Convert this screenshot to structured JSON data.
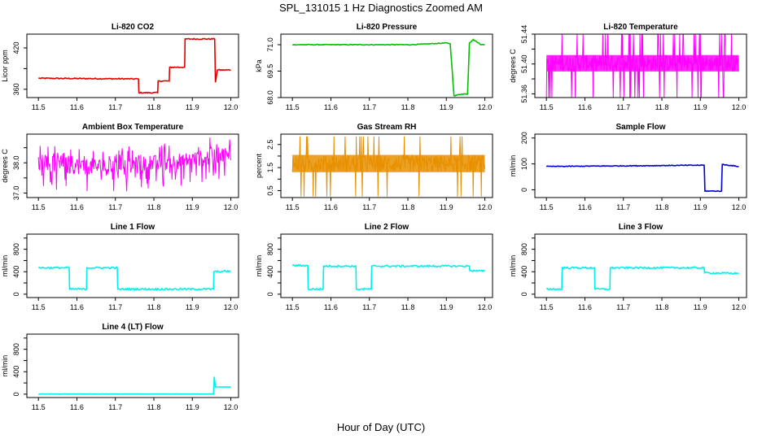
{
  "figure": {
    "title": "SPL_131015  1 Hz Diagnostics Zoomed AM",
    "xlabel": "Hour of Day (UTC)"
  },
  "chart_data": [
    {
      "type": "line",
      "title": "Li-820 CO2",
      "ylabel": "Licor ppm",
      "color": "#e00000",
      "xlim": [
        11.47,
        12.02
      ],
      "ylim": [
        348,
        440
      ],
      "xticks": [
        11.5,
        11.6,
        11.7,
        11.8,
        11.9,
        12.0
      ],
      "xticklabels": [
        "11.5",
        "11.6",
        "11.7",
        "11.8",
        "11.9",
        "12.0"
      ],
      "yticks": [
        360,
        390,
        420
      ],
      "yticklabels": [
        "360",
        "",
        "420"
      ],
      "x": [
        11.5,
        11.76,
        11.761,
        11.81,
        11.811,
        11.84,
        11.841,
        11.88,
        11.881,
        11.958,
        11.96,
        11.965,
        12.0
      ],
      "y": [
        376,
        375,
        355,
        355,
        372,
        372,
        392,
        392,
        433,
        433,
        370,
        388,
        388
      ],
      "noise": 0.8
    },
    {
      "type": "line",
      "title": "Li-820 Pressure",
      "ylabel": "kPa",
      "color": "#00c000",
      "xlim": [
        11.47,
        12.02
      ],
      "ylim": [
        68,
        71.6
      ],
      "xticks": [
        11.5,
        11.6,
        11.7,
        11.8,
        11.9,
        12.0
      ],
      "xticklabels": [
        "11.5",
        "11.6",
        "11.7",
        "11.8",
        "11.9",
        "12.0"
      ],
      "yticks": [
        68.0,
        69.5,
        71.0
      ],
      "yticklabels": [
        "68.0",
        "69.5",
        "71.0"
      ],
      "x": [
        11.5,
        11.81,
        11.9,
        11.91,
        11.92,
        11.94,
        11.955,
        11.96,
        11.97,
        11.99,
        12.0
      ],
      "y": [
        71.0,
        71.0,
        71.1,
        71.05,
        68.1,
        68.2,
        68.2,
        71.1,
        71.3,
        71.0,
        71.0
      ],
      "noise": 0.02
    },
    {
      "type": "band",
      "title": "Li-820 Temperature",
      "ylabel": "degrees C",
      "color": "#ff00ff",
      "xlim": [
        11.47,
        12.02
      ],
      "ylim": [
        51.355,
        51.44
      ],
      "xticks": [
        11.5,
        11.6,
        11.7,
        11.8,
        11.9,
        12.0
      ],
      "xticklabels": [
        "11.5",
        "11.6",
        "11.7",
        "11.8",
        "11.9",
        "12.0"
      ],
      "yticks": [
        51.36,
        51.38,
        51.4,
        51.42,
        51.44
      ],
      "yticklabels": [
        "51.36",
        "",
        "51.40",
        "",
        "51.44"
      ],
      "x": [
        11.5,
        12.0
      ],
      "center": [
        51.398,
        51.398
      ],
      "band": [
        51.39,
        51.412
      ],
      "spike_low": 51.355,
      "spike_high": 51.44,
      "n": 420,
      "spike_rate": 0.14
    },
    {
      "type": "band",
      "title": "Ambient Box Temperature",
      "ylabel": "degrees C",
      "color": "#ff00ff",
      "xlim": [
        11.47,
        12.02
      ],
      "ylim": [
        36.85,
        38.95
      ],
      "xticks": [
        11.5,
        11.6,
        11.7,
        11.8,
        11.9,
        12.0
      ],
      "xticklabels": [
        "11.5",
        "11.6",
        "11.7",
        "11.8",
        "11.9",
        "12.0"
      ],
      "yticks": [
        37.0,
        37.5,
        38.0,
        38.5
      ],
      "yticklabels": [
        "37.0",
        "",
        "38.0",
        ""
      ],
      "x": [
        11.5,
        11.7,
        11.9,
        12.0
      ],
      "center": [
        37.95,
        37.85,
        38.1,
        38.3
      ],
      "band": [
        -0.28,
        0.28
      ],
      "spike_low": -0.85,
      "spike_high": 0.65,
      "n": 340,
      "spike_rate": 0.25,
      "relative": true
    },
    {
      "type": "band",
      "title": "Gas Stream RH",
      "ylabel": "percent",
      "color": "#e89000",
      "xlim": [
        11.47,
        12.02
      ],
      "ylim": [
        0.2,
        2.95
      ],
      "xticks": [
        11.5,
        11.6,
        11.7,
        11.8,
        11.9,
        12.0
      ],
      "xticklabels": [
        "11.5",
        "11.6",
        "11.7",
        "11.8",
        "11.9",
        "12.0"
      ],
      "yticks": [
        0.5,
        1.0,
        1.5,
        2.0,
        2.5
      ],
      "yticklabels": [
        "0.5",
        "",
        "1.5",
        "",
        "2.5"
      ],
      "x": [
        11.5,
        12.0
      ],
      "center": [
        1.7,
        1.7
      ],
      "band": [
        1.3,
        2.05
      ],
      "spike_low": 0.25,
      "spike_high": 2.85,
      "n": 380,
      "spike_rate": 0.09
    },
    {
      "type": "line",
      "title": "Sample Flow",
      "ylabel": "ml/min",
      "color": "#0000d0",
      "xlim": [
        11.47,
        12.02
      ],
      "ylim": [
        -30,
        215
      ],
      "xticks": [
        11.5,
        11.6,
        11.7,
        11.8,
        11.9,
        12.0
      ],
      "xticklabels": [
        "11.5",
        "11.6",
        "11.7",
        "11.8",
        "11.9",
        "12.0"
      ],
      "yticks": [
        0,
        100,
        200
      ],
      "yticklabels": [
        "0",
        "100",
        "200"
      ],
      "x": [
        11.5,
        11.91,
        11.912,
        11.955,
        11.957,
        12.0
      ],
      "y": [
        90,
        95,
        -5,
        -5,
        98,
        90
      ],
      "noise": 1.5
    },
    {
      "type": "line",
      "title": "Line 1 Flow",
      "ylabel": "ml/min",
      "color": "#00f0f0",
      "xlim": [
        11.47,
        12.02
      ],
      "ylim": [
        -60,
        1070
      ],
      "xticks": [
        11.5,
        11.6,
        11.7,
        11.8,
        11.9,
        12.0
      ],
      "xticklabels": [
        "11.5",
        "11.6",
        "11.7",
        "11.8",
        "11.9",
        "12.0"
      ],
      "yticks": [
        0,
        200,
        400,
        600,
        800,
        1000
      ],
      "yticklabels": [
        "0",
        "",
        "400",
        "",
        "800",
        ""
      ],
      "x": [
        11.5,
        11.58,
        11.581,
        11.625,
        11.626,
        11.705,
        11.706,
        11.955,
        11.956,
        12.0
      ],
      "y": [
        470,
        470,
        90,
        90,
        470,
        470,
        90,
        90,
        400,
        410
      ],
      "noise": 15
    },
    {
      "type": "line",
      "title": "Line 2 Flow",
      "ylabel": "ml/min",
      "color": "#00f0f0",
      "xlim": [
        11.47,
        12.02
      ],
      "ylim": [
        -60,
        1070
      ],
      "xticks": [
        11.5,
        11.6,
        11.7,
        11.8,
        11.9,
        12.0
      ],
      "xticklabels": [
        "11.5",
        "11.6",
        "11.7",
        "11.8",
        "11.9",
        "12.0"
      ],
      "yticks": [
        0,
        200,
        400,
        600,
        800,
        1000
      ],
      "yticklabels": [
        "0",
        "",
        "400",
        "",
        "800",
        ""
      ],
      "x": [
        11.5,
        11.54,
        11.541,
        11.58,
        11.581,
        11.665,
        11.666,
        11.705,
        11.706,
        11.96,
        11.961,
        12.0
      ],
      "y": [
        510,
        510,
        90,
        90,
        500,
        500,
        90,
        90,
        500,
        500,
        420,
        410
      ],
      "noise": 15
    },
    {
      "type": "line",
      "title": "Line 3 Flow",
      "ylabel": "ml/min",
      "color": "#00f0f0",
      "xlim": [
        11.47,
        12.02
      ],
      "ylim": [
        -60,
        1070
      ],
      "xticks": [
        11.5,
        11.6,
        11.7,
        11.8,
        11.9,
        12.0
      ],
      "xticklabels": [
        "11.5",
        "11.6",
        "11.7",
        "11.8",
        "11.9",
        "12.0"
      ],
      "yticks": [
        0,
        200,
        400,
        600,
        800,
        1000
      ],
      "yticklabels": [
        "0",
        "",
        "400",
        "",
        "800",
        ""
      ],
      "x": [
        11.5,
        11.54,
        11.541,
        11.625,
        11.626,
        11.665,
        11.666,
        11.91,
        11.911,
        12.0
      ],
      "y": [
        90,
        90,
        470,
        470,
        90,
        90,
        470,
        470,
        380,
        370
      ],
      "noise": 15
    },
    {
      "type": "line",
      "title": "Line 4 (LT) Flow",
      "ylabel": "ml/min",
      "color": "#00f0f0",
      "xlim": [
        11.47,
        12.02
      ],
      "ylim": [
        -60,
        1070
      ],
      "xticks": [
        11.5,
        11.6,
        11.7,
        11.8,
        11.9,
        12.0
      ],
      "xticklabels": [
        "11.5",
        "11.6",
        "11.7",
        "11.8",
        "11.9",
        "12.0"
      ],
      "yticks": [
        0,
        200,
        400,
        600,
        800,
        1000
      ],
      "yticklabels": [
        "0",
        "",
        "400",
        "",
        "800",
        ""
      ],
      "x": [
        11.5,
        11.955,
        11.957,
        11.96,
        11.962,
        12.0
      ],
      "y": [
        3,
        3,
        310,
        130,
        130,
        125
      ],
      "noise": 2
    }
  ]
}
